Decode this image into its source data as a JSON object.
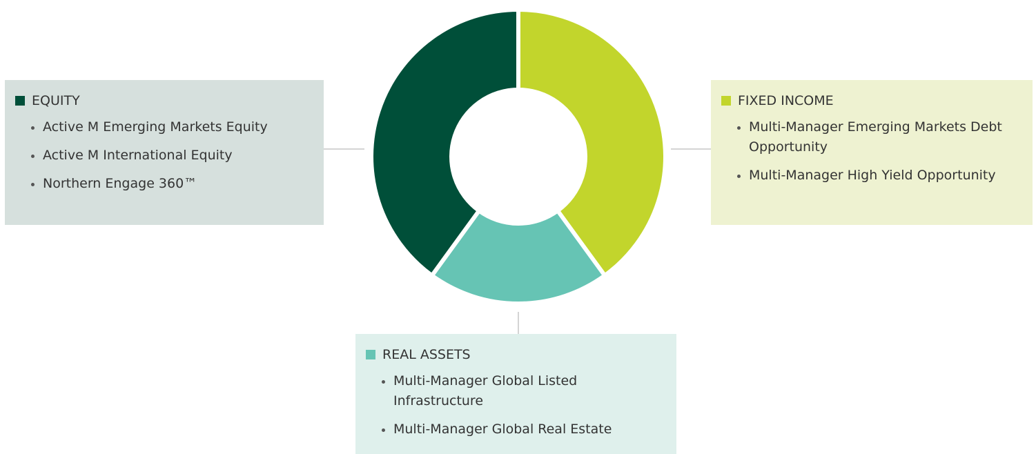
{
  "chart_data": {
    "type": "pie",
    "categories": [
      "FIXED INCOME",
      "REAL ASSETS",
      "EQUITY"
    ],
    "values": [
      40,
      20,
      40
    ],
    "colors": [
      "#c2d52c",
      "#66c4b4",
      "#004f39"
    ],
    "items": [
      [
        "Multi-Manager Emerging Markets Debt Opportunity",
        "Multi-Manager High Yield Opportunity"
      ],
      [
        "Multi-Manager Global Listed Infrastructure",
        "Multi-Manager Global Real Estate"
      ],
      [
        "Active M Emerging Markets Equity",
        "Active M International Equity",
        "Northern Engage 360™"
      ]
    ]
  }
}
